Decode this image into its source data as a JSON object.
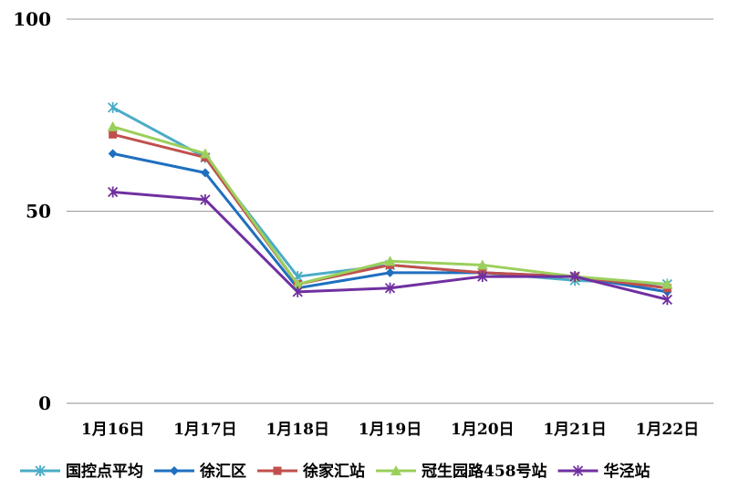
{
  "chart_data": {
    "type": "line",
    "title": "",
    "xlabel": "",
    "ylabel": "",
    "categories": [
      "1月16日",
      "1月17日",
      "1月18日",
      "1月19日",
      "1月20日",
      "1月21日",
      "1月22日"
    ],
    "ylim": [
      0,
      100
    ],
    "yticks": [
      "0",
      "50",
      "100"
    ],
    "grid": true,
    "legend_position": "bottom",
    "series": [
      {
        "name": "国控点平均",
        "color": "#4bacc6",
        "marker": "asterisk",
        "values": [
          77,
          64,
          33,
          36,
          34,
          32,
          31
        ]
      },
      {
        "name": "徐汇区",
        "color": "#1f6fbf",
        "marker": "diamond",
        "values": [
          65,
          60,
          30,
          34,
          34,
          33,
          29
        ]
      },
      {
        "name": "徐家汇站",
        "color": "#c0504d",
        "marker": "square",
        "values": [
          70,
          64,
          31,
          36,
          34,
          33,
          30
        ]
      },
      {
        "name": "冠生园路458号站",
        "color": "#9bcf5c",
        "marker": "triangle",
        "values": [
          72,
          65,
          31,
          37,
          36,
          33,
          31
        ]
      },
      {
        "name": "华泾站",
        "color": "#7030a0",
        "marker": "asterisk",
        "values": [
          55,
          53,
          29,
          30,
          33,
          33,
          27
        ]
      }
    ]
  }
}
